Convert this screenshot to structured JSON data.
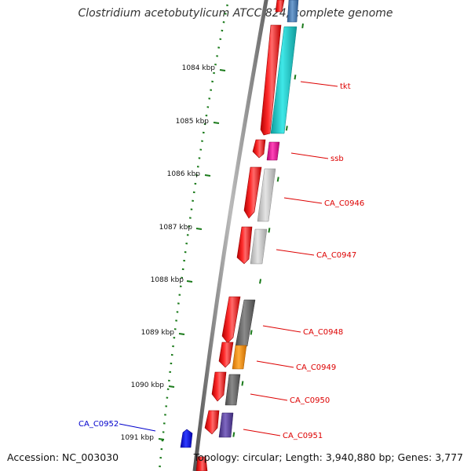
{
  "map": {
    "title": "Clostridium acetobutylicum ATCC 824, complete genome",
    "accession": "Accession: NC_003030",
    "summary": "Topology: circular; Length: 3,940,880 bp; Genes: 3,777"
  },
  "ticks": [
    {
      "label": "1084 kbp"
    },
    {
      "label": "1085 kbp"
    },
    {
      "label": "1086 kbp"
    },
    {
      "label": "1087 kbp"
    },
    {
      "label": "1088 kbp"
    },
    {
      "label": "1089 kbp"
    },
    {
      "label": "1090 kbp"
    },
    {
      "label": "1091 kbp"
    }
  ],
  "gene_labels": [
    {
      "name": "tkt",
      "color": "#dd0000"
    },
    {
      "name": "ssb",
      "color": "#dd0000"
    },
    {
      "name": "CA_C0946",
      "color": "#dd0000"
    },
    {
      "name": "CA_C0947",
      "color": "#dd0000"
    },
    {
      "name": "CA_C0948",
      "color": "#dd0000"
    },
    {
      "name": "CA_C0949",
      "color": "#dd0000"
    },
    {
      "name": "CA_C0950",
      "color": "#dd0000"
    },
    {
      "name": "CA_C0951",
      "color": "#dd0000"
    },
    {
      "name": "CA_C0952",
      "color": "#0000cc"
    }
  ],
  "colors": {
    "cds": "#ff0000",
    "backbone": "#777777",
    "tick_mark": "#1a7a1a",
    "cog_cyan": "#19c9c9",
    "cog_magenta": "#ee1199",
    "cog_light_gray": "#c4c4c4",
    "cog_dark_gray": "#6a6a6a",
    "cog_orange": "#ff8c00",
    "cog_purple": "#5a3f9a",
    "cog_steelblue": "#4a7cb0",
    "reverse_cds": "#0000ee"
  }
}
